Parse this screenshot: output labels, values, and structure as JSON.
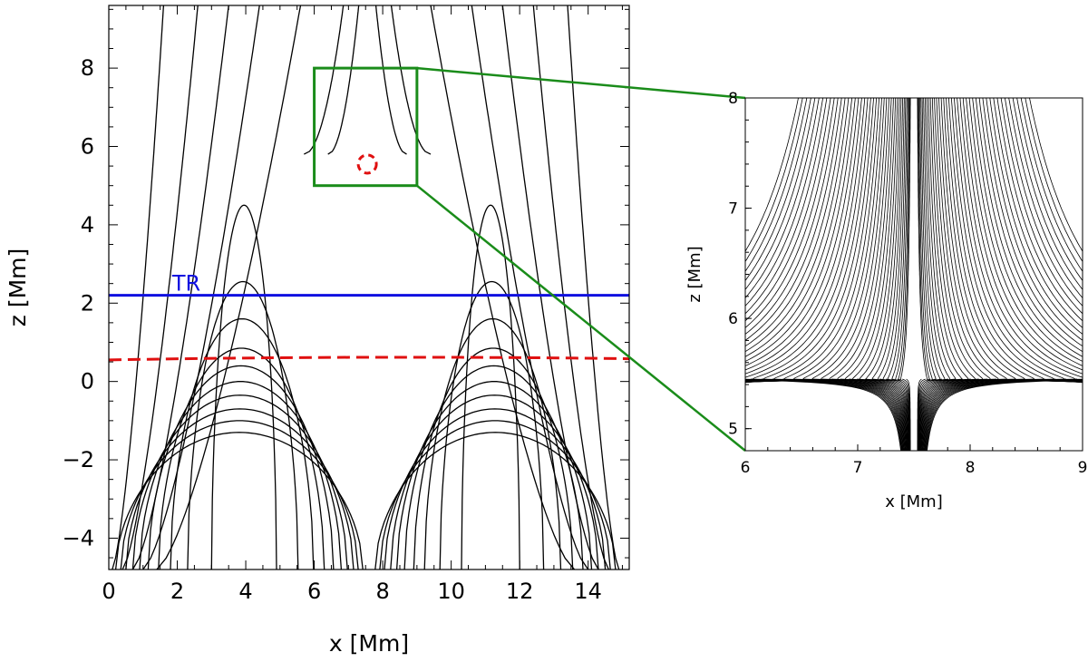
{
  "chart_data": [
    {
      "type": "line",
      "xlabel": "x [Mm]",
      "ylabel": "z [Mm]",
      "xlim": [
        0,
        15.2
      ],
      "ylim": [
        -4.8,
        9.6
      ],
      "xticks": [
        "0",
        "2",
        "4",
        "6",
        "8",
        "10",
        "12",
        "14"
      ],
      "yticks": [
        "−4",
        "−2",
        "0",
        "2",
        "4",
        "6",
        "8"
      ],
      "field_line_apex_heights": [
        -1.3,
        -1.0,
        -0.7,
        -0.35,
        0.0,
        0.4,
        0.85,
        1.6,
        2.55,
        4.5
      ],
      "annotations": [
        {
          "text": "TR",
          "type": "horizontal-line",
          "y": 2.2,
          "color": "#1010e0"
        },
        {
          "type": "horizontal-dashed-line",
          "y": 0.6,
          "color": "#e01010"
        },
        {
          "type": "dashed-circle",
          "x": 7.55,
          "y": 5.55,
          "color": "#e01010"
        },
        {
          "type": "zoom-box",
          "x": [
            6,
            9
          ],
          "y": [
            5,
            8
          ],
          "color": "#1a8c1a"
        }
      ]
    },
    {
      "type": "line",
      "xlabel": "x [Mm]",
      "ylabel": "z [Mm]",
      "xlim": [
        6,
        9
      ],
      "ylim": [
        4.8,
        8
      ],
      "xticks": [
        "6",
        "7",
        "8",
        "9"
      ],
      "yticks": [
        "5",
        "6",
        "7",
        "8"
      ],
      "x_point": {
        "x": 7.5,
        "y": 5.45
      }
    }
  ],
  "colors": {
    "field_lines": "#000000",
    "transition_region": "#1010e0",
    "red_markers": "#e01010",
    "zoom": "#1a8c1a"
  }
}
